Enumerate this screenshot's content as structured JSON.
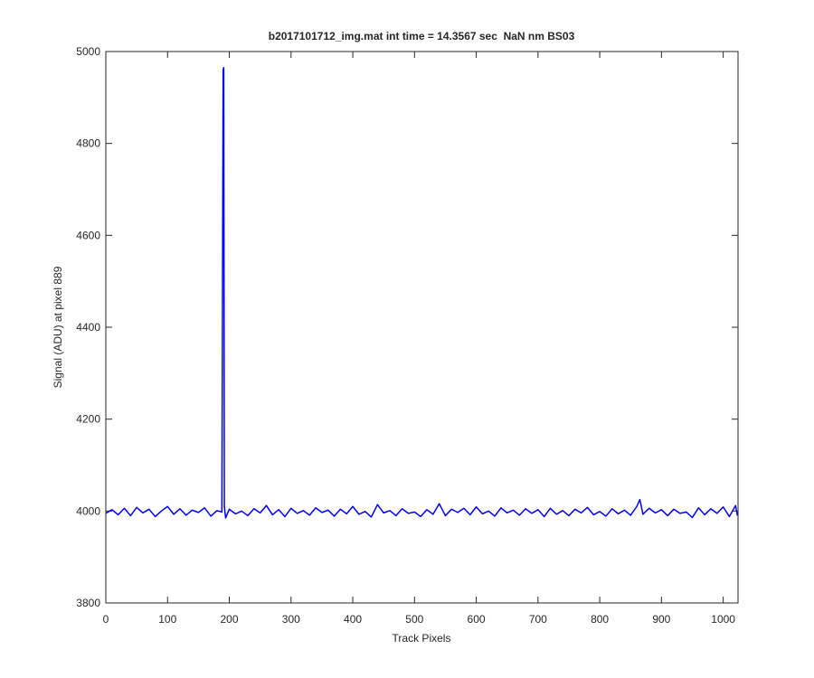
{
  "chart_data": {
    "type": "line",
    "title": "b2017101712_img.mat int time = 14.3567 sec  NaN nm BS03",
    "x_label": "Track Pixels",
    "y_label": "Signal (ADU) at pixel 889",
    "xlim": [
      0,
      1024
    ],
    "ylim": [
      3800,
      5000
    ],
    "xticks": [
      0,
      100,
      200,
      300,
      400,
      500,
      600,
      700,
      800,
      900,
      1000
    ],
    "yticks": [
      3800,
      4000,
      4200,
      4400,
      4600,
      4800,
      5000
    ],
    "x": [
      0,
      10,
      20,
      30,
      40,
      50,
      60,
      70,
      80,
      90,
      100,
      110,
      120,
      130,
      140,
      150,
      160,
      170,
      180,
      188,
      190,
      191,
      192,
      194,
      200,
      210,
      220,
      230,
      240,
      250,
      260,
      270,
      280,
      290,
      300,
      310,
      320,
      330,
      340,
      350,
      360,
      370,
      380,
      390,
      400,
      410,
      420,
      430,
      440,
      450,
      460,
      470,
      480,
      490,
      500,
      510,
      520,
      530,
      540,
      550,
      560,
      570,
      580,
      590,
      600,
      610,
      620,
      630,
      640,
      650,
      660,
      670,
      680,
      690,
      700,
      710,
      720,
      730,
      740,
      750,
      760,
      770,
      780,
      790,
      800,
      810,
      820,
      830,
      840,
      850,
      860,
      865,
      870,
      880,
      890,
      900,
      910,
      920,
      930,
      940,
      950,
      960,
      970,
      980,
      990,
      1000,
      1010,
      1020,
      1023
    ],
    "series": [
      {
        "color": "#0000ff",
        "values": [
          3995,
          4003,
          3992,
          4006,
          3990,
          4008,
          3996,
          4004,
          3988,
          4000,
          4010,
          3993,
          4005,
          3991,
          4002,
          3997,
          4007,
          3989,
          4001,
          3998,
          4960,
          4965,
          4010,
          3985,
          4004,
          3994,
          4000,
          3990,
          4005,
          3996,
          4012,
          3992,
          4003,
          3988,
          4006,
          3995,
          4001,
          3991,
          4007,
          3997,
          4002,
          3989,
          4004,
          3994,
          4010,
          3993,
          3999,
          3987,
          4014,
          3996,
          4001,
          3990,
          4005,
          3995,
          3998,
          3988,
          4003,
          3993,
          4016,
          3990,
          4004,
          3997,
          4006,
          3992,
          4009,
          3994,
          4000,
          3989,
          4007,
          3996,
          4002,
          3991,
          4005,
          3995,
          4003,
          3988,
          4006,
          3993,
          4001,
          3990,
          4004,
          3996,
          4008,
          3992,
          3999,
          3989,
          4005,
          3994,
          4002,
          3991,
          4010,
          4025,
          3993,
          4006,
          3996,
          4003,
          3990,
          4004,
          3995,
          3998,
          3986,
          4007,
          3992,
          4005,
          3995,
          4009,
          3988,
          4012,
          3990
        ]
      }
    ]
  }
}
